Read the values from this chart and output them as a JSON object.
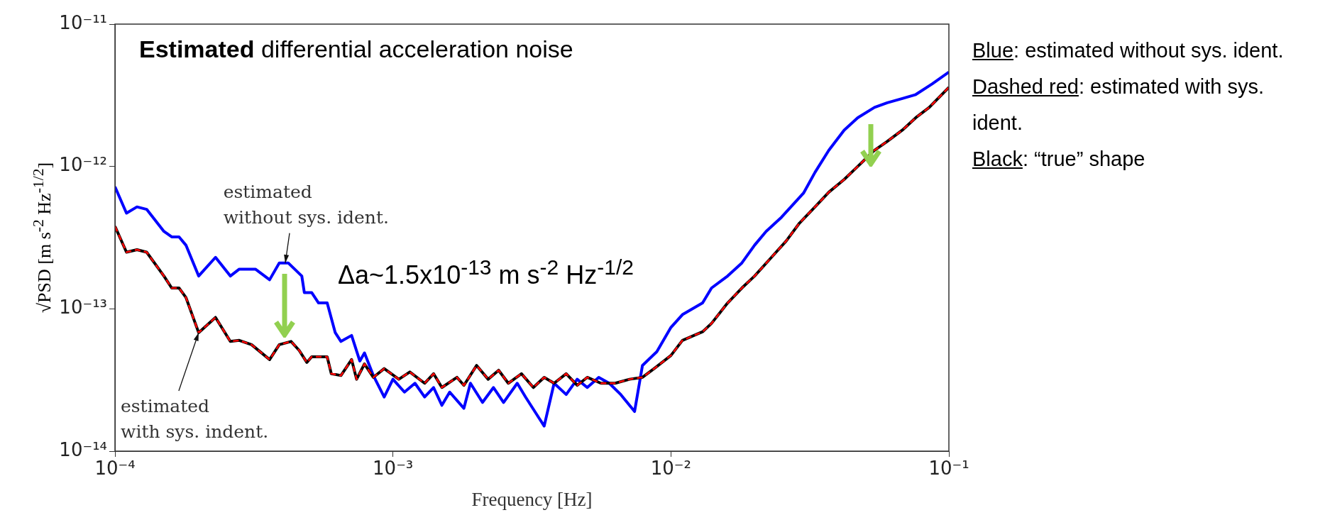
{
  "chart_data": {
    "type": "line",
    "title": "Estimated differential acceleration noise",
    "xlabel": "Frequency [Hz]",
    "ylabel": "√PSD [m s$^{-2}$ Hz$^{-1/2}$]",
    "log": "xy",
    "grid": false,
    "legend": false,
    "marker": "none",
    "xlim": [
      0.0001,
      0.1
    ],
    "xticks": [
      {
        "value": 0.0001,
        "label": "10⁻⁴"
      },
      {
        "value": 0.001,
        "label": "10⁻³"
      },
      {
        "value": 0.01,
        "label": "10⁻²"
      },
      {
        "value": 0.1,
        "label": "10⁻¹"
      }
    ],
    "ylim": [
      1e-14,
      1e-11
    ],
    "yticks": [
      {
        "value": 1e-14,
        "label": "10⁻¹⁴"
      },
      {
        "value": 1e-13,
        "label": "10⁻¹³"
      },
      {
        "value": 1e-12,
        "label": "10⁻¹²"
      },
      {
        "value": 1e-11,
        "label": "10⁻¹¹"
      }
    ],
    "series": [
      {
        "color": "#0000ff",
        "x": [
          0.0001,
          0.00011,
          0.00012,
          0.00013,
          0.00015,
          0.00016,
          0.00017,
          0.00018,
          0.0002,
          0.00023,
          0.00026,
          0.00028,
          0.00032,
          0.00036,
          0.00039,
          0.00042,
          0.00047,
          0.00048,
          0.00051,
          0.00054,
          0.00058,
          0.00062,
          0.00065,
          0.00071,
          0.00076,
          0.00079,
          0.00085,
          0.00093,
          0.001,
          0.0011,
          0.0012,
          0.0013,
          0.0014,
          0.0015,
          0.0016,
          0.0018,
          0.0019,
          0.0021,
          0.0023,
          0.0025,
          0.0028,
          0.003,
          0.0035,
          0.0038,
          0.0042,
          0.0046,
          0.005,
          0.0055,
          0.006,
          0.0066,
          0.0074,
          0.0079,
          0.0089,
          0.01,
          0.011,
          0.013,
          0.014,
          0.016,
          0.018,
          0.02,
          0.022,
          0.025,
          0.03,
          0.033,
          0.037,
          0.042,
          0.047,
          0.054,
          0.06,
          0.068,
          0.076,
          0.087,
          0.1
        ],
        "values": [
          7.2e-13,
          4.7e-13,
          5.2e-13,
          5e-13,
          3.5e-13,
          3.2e-13,
          3.2e-13,
          2.8e-13,
          1.7e-13,
          2.3e-13,
          1.7e-13,
          1.9e-13,
          1.9e-13,
          1.6e-13,
          2.1e-13,
          2.1e-13,
          1.7e-13,
          1.3e-13,
          1.3e-13,
          1.1e-13,
          1.1e-13,
          6.8e-14,
          5.9e-14,
          6.5e-14,
          4.3e-14,
          4.9e-14,
          3.4e-14,
          2.4e-14,
          3.2e-14,
          2.6e-14,
          3e-14,
          2.4e-14,
          2.8e-14,
          2.1e-14,
          2.6e-14,
          2e-14,
          3e-14,
          2.2e-14,
          2.8e-14,
          2.2e-14,
          3e-14,
          2.4e-14,
          1.5e-14,
          3e-14,
          2.5e-14,
          3.2e-14,
          2.8e-14,
          3.3e-14,
          3e-14,
          2.5e-14,
          1.9e-14,
          4e-14,
          5e-14,
          7.4e-14,
          9.1e-14,
          1.1e-13,
          1.4e-13,
          1.7e-13,
          2.1e-13,
          2.8e-13,
          3.5e-13,
          4.4e-13,
          6.5e-13,
          9.1e-13,
          1.3e-12,
          1.8e-12,
          2.2e-12,
          2.6e-12,
          2.8e-12,
          3e-12,
          3.2e-12,
          3.8e-12,
          4.6e-12
        ]
      },
      {
        "color": "#000000",
        "x": [
          0.0001,
          0.00011,
          0.00012,
          0.00013,
          0.00015,
          0.00016,
          0.00017,
          0.00018,
          0.0002,
          0.00023,
          0.00026,
          0.00028,
          0.00031,
          0.00036,
          0.00039,
          0.00043,
          0.00046,
          0.00049,
          0.00051,
          0.00058,
          0.0006,
          0.00065,
          0.00071,
          0.00074,
          0.00079,
          0.00085,
          0.00093,
          0.00105,
          0.00115,
          0.0013,
          0.0014,
          0.0015,
          0.0017,
          0.0018,
          0.002,
          0.0022,
          0.0024,
          0.0026,
          0.0029,
          0.0032,
          0.0035,
          0.0038,
          0.0042,
          0.0046,
          0.005,
          0.0056,
          0.0063,
          0.0071,
          0.0079,
          0.0087,
          0.01,
          0.011,
          0.013,
          0.014,
          0.016,
          0.018,
          0.02,
          0.023,
          0.026,
          0.029,
          0.033,
          0.037,
          0.042,
          0.047,
          0.054,
          0.06,
          0.068,
          0.076,
          0.085,
          0.1
        ],
        "values": [
          3.8e-13,
          2.5e-13,
          2.6e-13,
          2.5e-13,
          1.7e-13,
          1.4e-13,
          1.4e-13,
          1.2e-13,
          6.8e-14,
          8.7e-14,
          5.9e-14,
          6e-14,
          5.6e-14,
          4.4e-14,
          5.6e-14,
          5.9e-14,
          5.1e-14,
          4.2e-14,
          4.6e-14,
          4.6e-14,
          3.5e-14,
          3.4e-14,
          4.4e-14,
          3.2e-14,
          4.1e-14,
          3.3e-14,
          3.8e-14,
          3.2e-14,
          3.6e-14,
          3e-14,
          3.5e-14,
          2.8e-14,
          3.3e-14,
          2.9e-14,
          4e-14,
          3.2e-14,
          3.7e-14,
          3e-14,
          3.5e-14,
          2.8e-14,
          3.3e-14,
          3e-14,
          3.5e-14,
          2.9e-14,
          3.3e-14,
          3e-14,
          3e-14,
          3.2e-14,
          3.3e-14,
          3.8e-14,
          4.7e-14,
          6e-14,
          6.9e-14,
          7.9e-14,
          1.1e-13,
          1.4e-13,
          1.7e-13,
          2.3e-13,
          3e-13,
          4e-13,
          5.2e-13,
          6.6e-13,
          8.1e-13,
          1e-12,
          1.3e-12,
          1.5e-12,
          1.8e-12,
          2.2e-12,
          2.6e-12,
          3.6e-12
        ]
      },
      {
        "color": "#ff0000",
        "line_style": "dashed",
        "x": [
          0.0001,
          0.00011,
          0.00012,
          0.00013,
          0.00015,
          0.00016,
          0.00017,
          0.00018,
          0.0002,
          0.00023,
          0.00026,
          0.00028,
          0.00031,
          0.00036,
          0.00039,
          0.00043,
          0.00046,
          0.00049,
          0.00051,
          0.00058,
          0.0006,
          0.00065,
          0.00071,
          0.00074,
          0.00079,
          0.00085,
          0.00093,
          0.00105,
          0.00115,
          0.0013,
          0.0014,
          0.0015,
          0.0017,
          0.0018,
          0.002,
          0.0022,
          0.0024,
          0.0026,
          0.0029,
          0.0032,
          0.0035,
          0.0038,
          0.0042,
          0.0046,
          0.005,
          0.0056,
          0.0063,
          0.0071,
          0.0079,
          0.0087,
          0.01,
          0.011,
          0.013,
          0.014,
          0.016,
          0.018,
          0.02,
          0.023,
          0.026,
          0.029,
          0.033,
          0.037,
          0.042,
          0.047,
          0.054,
          0.06,
          0.068,
          0.076,
          0.085,
          0.1
        ],
        "values": [
          3.8e-13,
          2.5e-13,
          2.6e-13,
          2.5e-13,
          1.7e-13,
          1.4e-13,
          1.4e-13,
          1.2e-13,
          6.8e-14,
          8.7e-14,
          5.9e-14,
          6e-14,
          5.6e-14,
          4.4e-14,
          5.6e-14,
          5.9e-14,
          5.1e-14,
          4.2e-14,
          4.6e-14,
          4.6e-14,
          3.5e-14,
          3.4e-14,
          4.4e-14,
          3.2e-14,
          4.1e-14,
          3.3e-14,
          3.8e-14,
          3.2e-14,
          3.6e-14,
          3e-14,
          3.5e-14,
          2.8e-14,
          3.3e-14,
          2.9e-14,
          4e-14,
          3.2e-14,
          3.7e-14,
          3e-14,
          3.5e-14,
          2.8e-14,
          3.3e-14,
          3e-14,
          3.5e-14,
          2.9e-14,
          3.3e-14,
          3e-14,
          3e-14,
          3.2e-14,
          3.3e-14,
          3.8e-14,
          4.7e-14,
          6e-14,
          6.9e-14,
          7.9e-14,
          1.1e-13,
          1.4e-13,
          1.7e-13,
          2.3e-13,
          3e-13,
          4e-13,
          5.2e-13,
          6.6e-13,
          8.1e-13,
          1e-12,
          1.3e-12,
          1.5e-12,
          1.8e-12,
          2.2e-12,
          2.6e-12,
          3.6e-12
        ]
      }
    ],
    "annotations": [
      "Δa~1.5x10$^{-13}$ m s$^{-2}$ Hz$^{-1/2}$",
      {
        "text": "estimated\nwithout sys. ident.",
        "x": 0.00041,
        "y": 2.1e-13
      },
      {
        "text": "estimated\nwith sys. indent.",
        "x": 0.0002,
        "y": 6.8e-14
      },
      "Blue: estimated without sys. ident.",
      "Dashed red: estimated with sys. ident.",
      "Black: “true” shape"
    ]
  }
}
